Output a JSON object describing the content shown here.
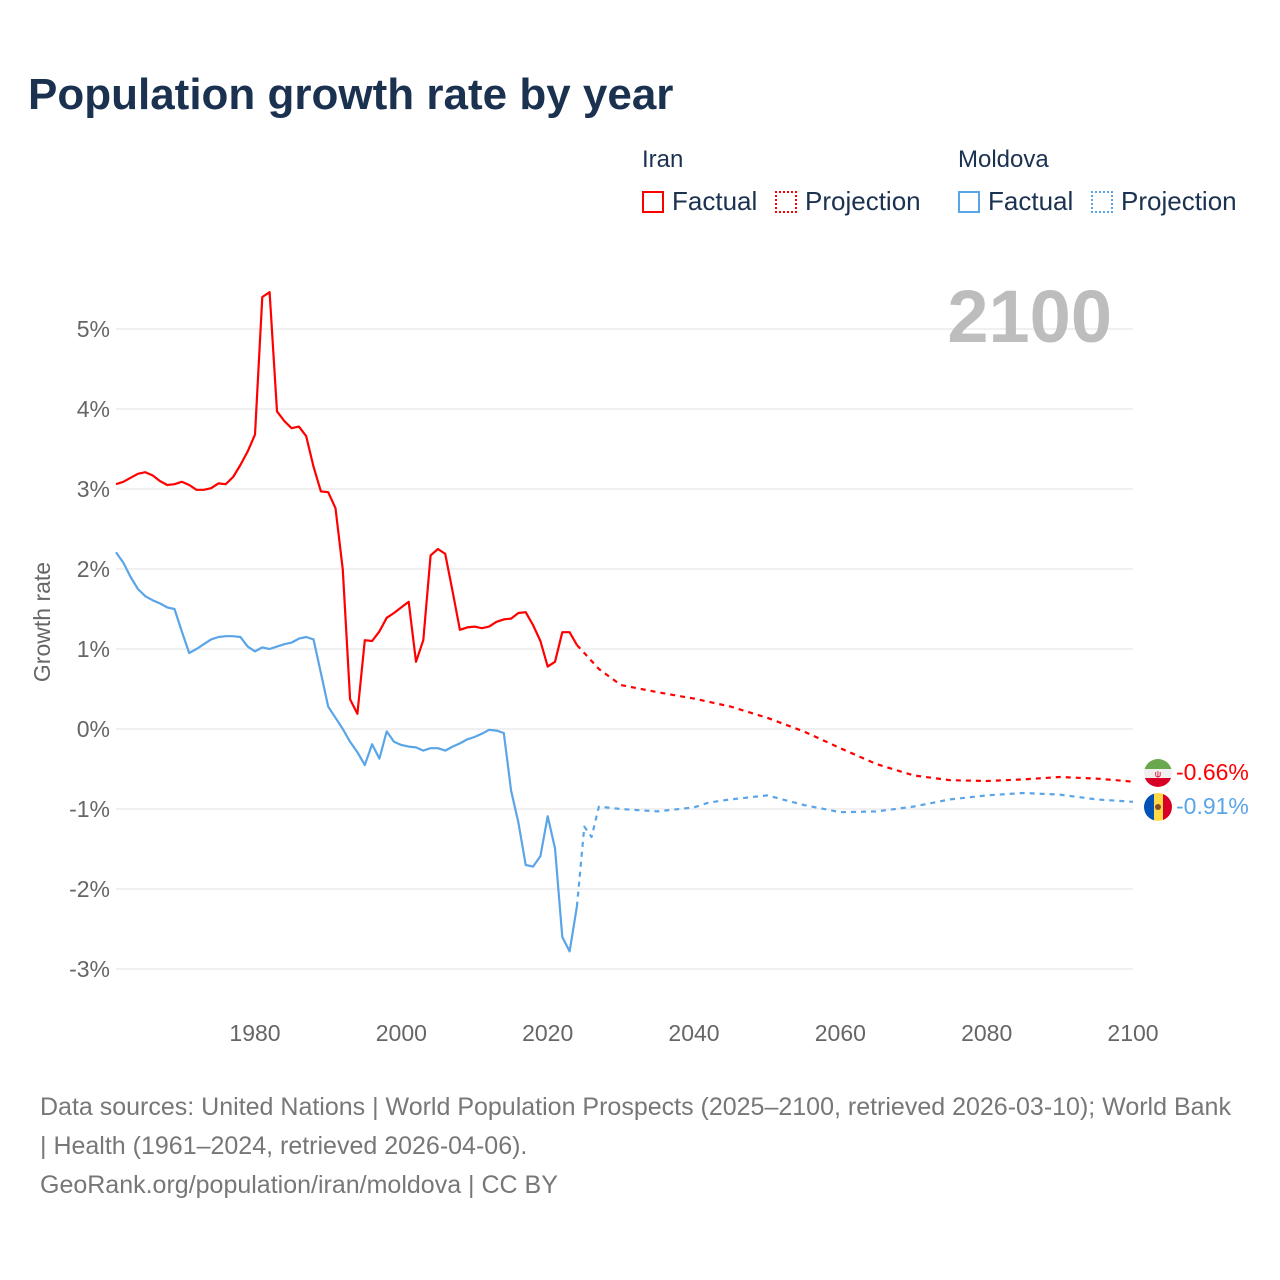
{
  "title": "Population growth rate by year",
  "legend": {
    "groups": [
      {
        "name": "Iran",
        "factual_label": "Factual",
        "projection_label": "Projection",
        "color": "#ff0000"
      },
      {
        "name": "Moldova",
        "factual_label": "Factual",
        "projection_label": "Projection",
        "color": "#5aa5e8"
      }
    ]
  },
  "year_watermark": "2100",
  "end_labels": {
    "iran": "-0.66%",
    "moldova": "-0.91%"
  },
  "source": {
    "line1": "Data sources: United Nations | World Population Prospects (2025–2100, retrieved 2026-03-10); World Bank | Health (1961–2024, retrieved 2026-04-06).",
    "line2": "GeoRank.org/population/iran/moldova | CC BY"
  },
  "chart_data": {
    "type": "line",
    "title": "Population growth rate by year",
    "xlabel": "",
    "ylabel": "Growth rate",
    "xlim": [
      1961,
      2100
    ],
    "ylim": [
      -3.5,
      5.6
    ],
    "x_ticks": [
      1980,
      2000,
      2020,
      2040,
      2060,
      2080,
      2100
    ],
    "x_tick_labels": [
      "1980",
      "2000",
      "2020",
      "2040",
      "2060",
      "2080",
      "2100"
    ],
    "y_ticks": [
      5,
      4,
      3,
      2,
      1,
      0,
      -1,
      -2,
      -3
    ],
    "y_tick_labels": [
      "5%",
      "4%",
      "3%",
      "2%",
      "1%",
      "0%",
      "-1%",
      "-2%",
      "-3%"
    ],
    "grid": true,
    "series": [
      {
        "name": "Iran Factual",
        "color": "#ff0000",
        "dash": false,
        "start_year": 1961,
        "values": [
          3.06,
          3.09,
          3.14,
          3.19,
          3.21,
          3.17,
          3.1,
          3.05,
          3.06,
          3.09,
          3.05,
          2.99,
          2.99,
          3.01,
          3.07,
          3.06,
          3.15,
          3.3,
          3.47,
          3.68,
          5.4,
          5.46,
          3.97,
          3.85,
          3.76,
          3.78,
          3.66,
          3.28,
          2.97,
          2.96,
          2.76,
          1.99,
          0.37,
          0.19,
          1.11,
          1.1,
          1.22,
          1.39,
          1.45,
          1.52,
          1.59,
          0.84,
          1.11,
          2.17,
          2.25,
          2.19,
          1.72,
          1.24,
          1.27,
          1.28,
          1.26,
          1.28,
          1.34,
          1.37,
          1.38,
          1.45,
          1.46,
          1.3,
          1.1,
          0.78,
          0.84,
          1.21,
          1.21,
          1.05
        ]
      },
      {
        "name": "Iran Projection",
        "color": "#ff0000",
        "dash": true,
        "x": [
          2024,
          2025,
          2027,
          2030,
          2035,
          2040,
          2045,
          2050,
          2055,
          2060,
          2065,
          2070,
          2075,
          2080,
          2085,
          2090,
          2095,
          2099,
          2100
        ],
        "values": [
          1.05,
          0.95,
          0.75,
          0.55,
          0.46,
          0.38,
          0.28,
          0.14,
          -0.03,
          -0.24,
          -0.44,
          -0.58,
          -0.64,
          -0.65,
          -0.63,
          -0.6,
          -0.62,
          -0.65,
          -0.66
        ]
      },
      {
        "name": "Moldova Factual",
        "color": "#5aa5e8",
        "dash": false,
        "start_year": 1961,
        "values": [
          2.21,
          2.08,
          1.9,
          1.75,
          1.66,
          1.61,
          1.57,
          1.52,
          1.5,
          1.22,
          0.95,
          1.0,
          1.06,
          1.12,
          1.15,
          1.16,
          1.16,
          1.15,
          1.03,
          0.97,
          1.02,
          1.0,
          1.03,
          1.06,
          1.08,
          1.13,
          1.15,
          1.12,
          0.7,
          0.28,
          0.14,
          0.0,
          -0.16,
          -0.29,
          -0.45,
          -0.19,
          -0.37,
          -0.03,
          -0.16,
          -0.2,
          -0.22,
          -0.23,
          -0.27,
          -0.24,
          -0.24,
          -0.27,
          -0.22,
          -0.18,
          -0.13,
          -0.1,
          -0.06,
          -0.01,
          -0.02,
          -0.05,
          -0.77,
          -1.17,
          -1.7,
          -1.72,
          -1.59,
          -1.09,
          -1.49,
          -2.6,
          -2.78,
          -2.22
        ]
      },
      {
        "name": "Moldova Projection",
        "color": "#5aa5e8",
        "dash": true,
        "x": [
          2024,
          2025,
          2026,
          2027,
          2030,
          2035,
          2040,
          2042,
          2045,
          2050,
          2055,
          2060,
          2065,
          2070,
          2075,
          2080,
          2085,
          2090,
          2095,
          2100
        ],
        "values": [
          -2.22,
          -1.22,
          -1.35,
          -0.97,
          -1.0,
          -1.03,
          -0.98,
          -0.92,
          -0.88,
          -0.83,
          -0.95,
          -1.04,
          -1.03,
          -0.97,
          -0.88,
          -0.83,
          -0.8,
          -0.82,
          -0.88,
          -0.91
        ]
      }
    ]
  }
}
